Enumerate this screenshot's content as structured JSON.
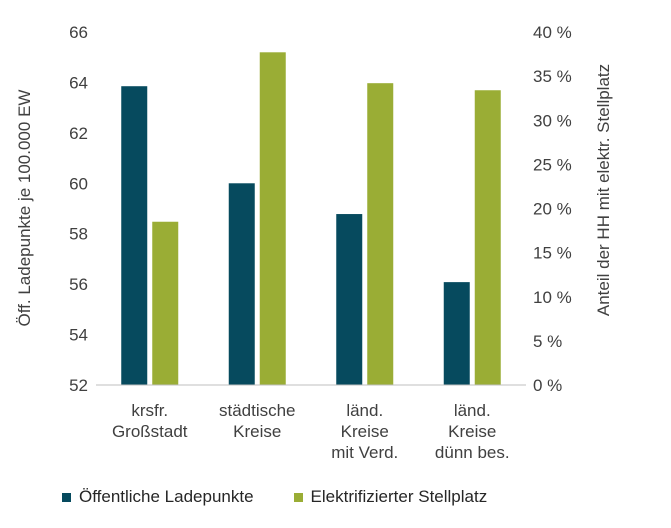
{
  "chart_data": {
    "type": "bar",
    "categories": [
      [
        "krsfr.",
        "Großstadt"
      ],
      [
        "städtische",
        "Kreise"
      ],
      [
        "länd.",
        "Kreise",
        "mit Verd."
      ],
      [
        "länd.",
        "Kreise",
        "dünn bes."
      ]
    ],
    "series": [
      {
        "name": "Öffentliche Ladepunkte",
        "axis": "left",
        "color": "#064a5e",
        "values": [
          63.85,
          60.0,
          58.78,
          56.08
        ]
      },
      {
        "name": "Elektrifizierter Stellplatz",
        "axis": "right",
        "color": "#9aad35",
        "values": [
          18.5,
          37.7,
          34.2,
          33.4
        ]
      }
    ],
    "left_axis": {
      "label": "Öff. Ladepunkte je 100.000 EW",
      "ylim": [
        52,
        66
      ],
      "ticks": [
        "52",
        "54",
        "56",
        "58",
        "60",
        "62",
        "64",
        "66"
      ]
    },
    "right_axis": {
      "label": "Anteil der HH mit elektr. Stellplatz",
      "ylim": [
        0,
        40
      ],
      "ticks": [
        "0 %",
        "5 %",
        "10 %",
        "15 %",
        "20 %",
        "25 %",
        "30 %",
        "35 %",
        "40 %"
      ]
    },
    "grid": false,
    "legend_position": "bottom"
  }
}
